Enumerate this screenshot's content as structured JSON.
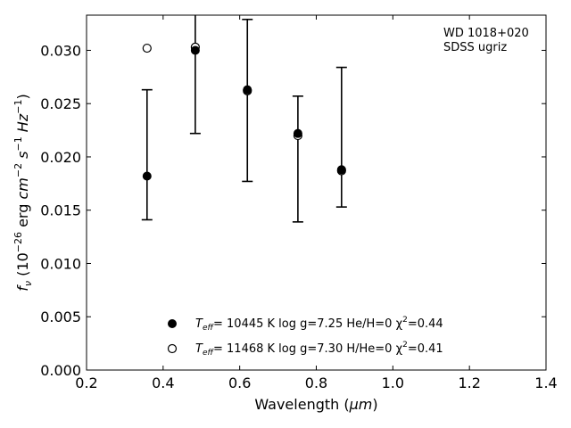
{
  "chart_data": {
    "type": "scatter",
    "xlabel": "Wavelength (μm)",
    "ylabel": "f_ν (10^-26 erg cm^-2 s^-1 Hz^-1)",
    "xlim": [
      0.2,
      1.4
    ],
    "ylim": [
      0.0,
      0.0333
    ],
    "x_ticks": [
      0.2,
      0.4,
      0.6,
      0.8,
      1.0,
      1.2,
      1.4
    ],
    "y_ticks": [
      0.0,
      0.005,
      0.01,
      0.015,
      0.02,
      0.025,
      0.03
    ],
    "x_tick_labels": [
      "0.2",
      "0.4",
      "0.6",
      "0.8",
      "1.0",
      "1.2",
      "1.4"
    ],
    "y_tick_labels": [
      "0.000",
      "0.005",
      "0.010",
      "0.015",
      "0.020",
      "0.025",
      "0.030"
    ],
    "grid": false,
    "annotation": [
      "WD 1018+020",
      "SDSS ugriz"
    ],
    "annotation_position": "top-right",
    "legend_position": "bottom-center",
    "observed": {
      "x": [
        0.358,
        0.484,
        0.62,
        0.752,
        0.866
      ],
      "y": [
        0.0182,
        0.0302,
        0.0263,
        0.022,
        0.0187
      ],
      "y_low": [
        0.0141,
        0.0222,
        0.0177,
        0.0139,
        0.0153
      ],
      "y_high": [
        0.0263,
        0.0335,
        0.0329,
        0.0257,
        0.0284
      ]
    },
    "series": [
      {
        "name": "T_eff= 10445 K  log g=7.25  He/H=0  χ²=0.44",
        "marker": "filled-circle",
        "x": [
          0.358,
          0.484,
          0.62,
          0.752,
          0.866
        ],
        "y": [
          0.0182,
          0.03,
          0.0263,
          0.0222,
          0.0188
        ]
      },
      {
        "name": "T_eff= 11468 K  log g=7.30  H/He=0  χ²=0.41",
        "marker": "open-circle",
        "x": [
          0.358,
          0.484,
          0.62,
          0.752,
          0.866
        ],
        "y": [
          0.0302,
          0.0303,
          0.0262,
          0.022,
          0.0187
        ]
      }
    ],
    "legend_parts": [
      {
        "teff": "T",
        "sub": "eff",
        "rest": "= 10445 K  log g=7.25  He/H=0  χ",
        "sup": "2",
        "tail": "=0.44"
      },
      {
        "teff": "T",
        "sub": "eff",
        "rest": "= 11468 K  log g=7.30  H/He=0  χ",
        "sup": "2",
        "tail": "=0.41"
      }
    ],
    "ylabel_parts": {
      "f": "f",
      "fsub": "ν",
      "open": " (10",
      "e1": "−26",
      "erg": " erg ",
      "cm": "cm",
      "e2": "−2",
      "s": " s",
      "e3": "−1",
      "hz": " Hz",
      "e4": "−1",
      "close": ")"
    },
    "xlabel_parts": {
      "pre": "Wavelength (",
      "mu": "μm",
      "post": ")"
    }
  }
}
